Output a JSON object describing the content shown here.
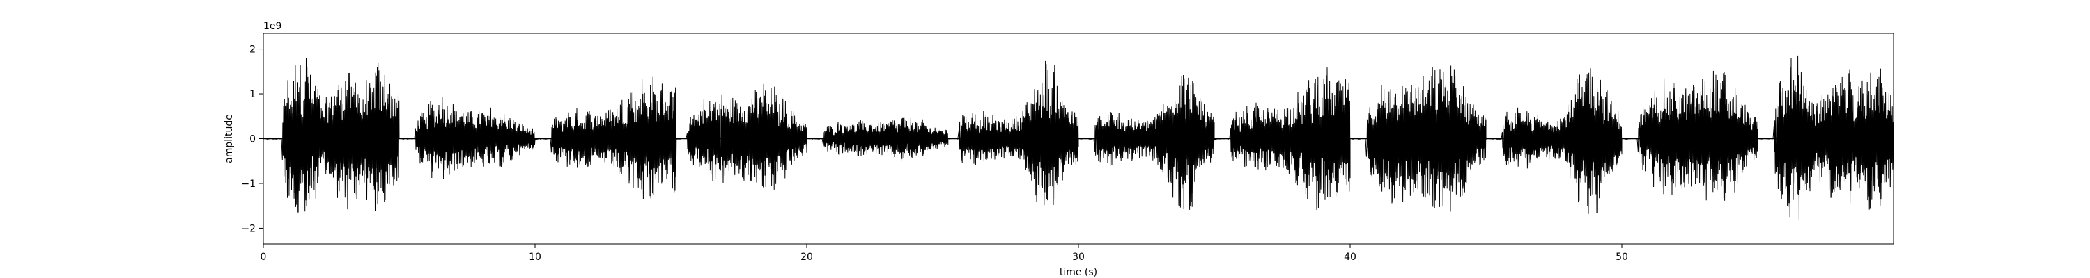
{
  "chart_data": {
    "type": "line",
    "title": "",
    "xlabel": "time (s)",
    "ylabel": "amplitude",
    "y_scale_label": "1e9",
    "y_scale": 1000000000,
    "xlim": [
      0,
      60
    ],
    "ylim": [
      -2.35,
      2.35
    ],
    "x_ticks": [
      0,
      10,
      20,
      30,
      40,
      50
    ],
    "x_tick_labels": [
      "0",
      "10",
      "20",
      "30",
      "40",
      "50"
    ],
    "y_ticks": [
      2,
      1,
      0,
      -1,
      -2
    ],
    "y_tick_labels": [
      "2",
      "1",
      "0",
      "−1",
      "−2"
    ],
    "grid": false,
    "line_color": "#000000",
    "series": [
      {
        "kind": "waveform",
        "segments": [
          {
            "start": 0.7,
            "end": 5.0,
            "peak": 2.15,
            "shape": "loud"
          },
          {
            "start": 5.6,
            "end": 10.0,
            "peak": 1.3,
            "shape": "burst_then_decay"
          },
          {
            "start": 10.6,
            "end": 15.2,
            "peak": 1.9,
            "shape": "rising"
          },
          {
            "start": 15.6,
            "end": 20.0,
            "peak": 1.5,
            "shape": "middle"
          },
          {
            "start": 20.6,
            "end": 25.2,
            "peak": 0.6,
            "shape": "quiet"
          },
          {
            "start": 25.6,
            "end": 30.0,
            "peak": 1.9,
            "shape": "late_peak"
          },
          {
            "start": 30.6,
            "end": 35.0,
            "peak": 1.9,
            "shape": "late_peak"
          },
          {
            "start": 35.6,
            "end": 40.0,
            "peak": 2.15,
            "shape": "rising"
          },
          {
            "start": 40.6,
            "end": 45.0,
            "peak": 2.15,
            "shape": "middle"
          },
          {
            "start": 45.6,
            "end": 50.0,
            "peak": 2.0,
            "shape": "late_peak"
          },
          {
            "start": 50.6,
            "end": 55.0,
            "peak": 1.9,
            "shape": "middle"
          },
          {
            "start": 55.6,
            "end": 60.0,
            "peak": 2.1,
            "shape": "loud"
          }
        ]
      }
    ]
  }
}
